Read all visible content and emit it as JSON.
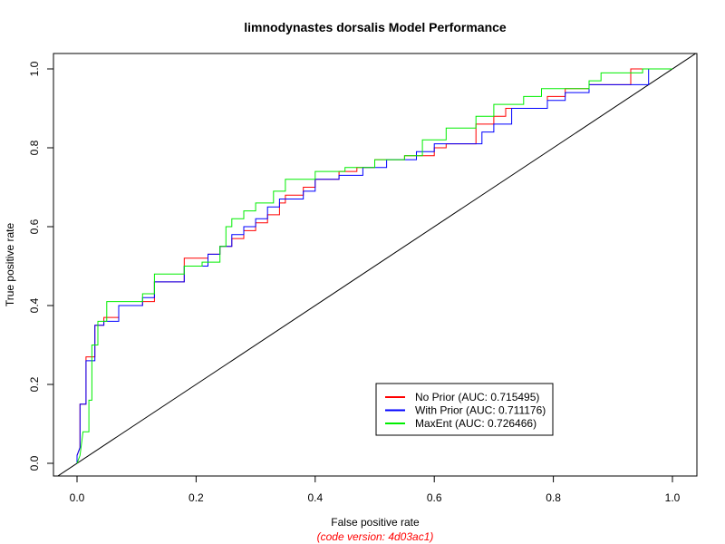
{
  "chart_data": {
    "type": "line",
    "title": "limnodynastes dorsalis Model Performance",
    "xlabel": "False positive rate",
    "ylabel": "True positive rate",
    "footnote": "(code version: 4d03ac1)",
    "footnote_color": "#ff0000",
    "xlim": [
      0,
      1
    ],
    "ylim": [
      0,
      1
    ],
    "x_ticks": [
      "0.0",
      "0.2",
      "0.4",
      "0.6",
      "0.8",
      "1.0"
    ],
    "y_ticks": [
      "0.0",
      "0.2",
      "0.4",
      "0.6",
      "0.8",
      "1.0"
    ],
    "grid": false,
    "legend_position": "bottom-right",
    "reference_line": {
      "from": [
        0,
        0
      ],
      "to": [
        1,
        1
      ],
      "color": "#000000"
    },
    "series": [
      {
        "name": "No Prior (AUC: 0.715495)",
        "color": "#ff0000",
        "points": [
          [
            0,
            0
          ],
          [
            0,
            0.02
          ],
          [
            0.005,
            0.04
          ],
          [
            0.005,
            0.15
          ],
          [
            0.015,
            0.15
          ],
          [
            0.015,
            0.27
          ],
          [
            0.03,
            0.27
          ],
          [
            0.03,
            0.35
          ],
          [
            0.045,
            0.35
          ],
          [
            0.045,
            0.37
          ],
          [
            0.07,
            0.37
          ],
          [
            0.07,
            0.4
          ],
          [
            0.11,
            0.4
          ],
          [
            0.11,
            0.41
          ],
          [
            0.13,
            0.41
          ],
          [
            0.13,
            0.46
          ],
          [
            0.18,
            0.46
          ],
          [
            0.18,
            0.52
          ],
          [
            0.22,
            0.52
          ],
          [
            0.22,
            0.53
          ],
          [
            0.24,
            0.53
          ],
          [
            0.24,
            0.55
          ],
          [
            0.26,
            0.55
          ],
          [
            0.26,
            0.57
          ],
          [
            0.28,
            0.57
          ],
          [
            0.28,
            0.59
          ],
          [
            0.3,
            0.59
          ],
          [
            0.3,
            0.61
          ],
          [
            0.32,
            0.61
          ],
          [
            0.32,
            0.63
          ],
          [
            0.34,
            0.63
          ],
          [
            0.34,
            0.66
          ],
          [
            0.35,
            0.66
          ],
          [
            0.35,
            0.68
          ],
          [
            0.38,
            0.68
          ],
          [
            0.38,
            0.7
          ],
          [
            0.4,
            0.7
          ],
          [
            0.4,
            0.72
          ],
          [
            0.44,
            0.72
          ],
          [
            0.44,
            0.74
          ],
          [
            0.47,
            0.74
          ],
          [
            0.47,
            0.75
          ],
          [
            0.5,
            0.75
          ],
          [
            0.5,
            0.77
          ],
          [
            0.55,
            0.77
          ],
          [
            0.55,
            0.78
          ],
          [
            0.6,
            0.78
          ],
          [
            0.6,
            0.8
          ],
          [
            0.62,
            0.8
          ],
          [
            0.62,
            0.81
          ],
          [
            0.67,
            0.81
          ],
          [
            0.67,
            0.86
          ],
          [
            0.7,
            0.86
          ],
          [
            0.7,
            0.88
          ],
          [
            0.72,
            0.88
          ],
          [
            0.72,
            0.9
          ],
          [
            0.79,
            0.9
          ],
          [
            0.79,
            0.93
          ],
          [
            0.82,
            0.93
          ],
          [
            0.82,
            0.95
          ],
          [
            0.86,
            0.95
          ],
          [
            0.86,
            0.96
          ],
          [
            0.93,
            0.96
          ],
          [
            0.93,
            1.0
          ],
          [
            1.0,
            1.0
          ]
        ]
      },
      {
        "name": "With Prior (AUC: 0.711176)",
        "color": "#0000ff",
        "points": [
          [
            0,
            0
          ],
          [
            0,
            0.02
          ],
          [
            0.005,
            0.04
          ],
          [
            0.005,
            0.15
          ],
          [
            0.015,
            0.15
          ],
          [
            0.015,
            0.26
          ],
          [
            0.03,
            0.26
          ],
          [
            0.03,
            0.35
          ],
          [
            0.045,
            0.35
          ],
          [
            0.045,
            0.36
          ],
          [
            0.07,
            0.36
          ],
          [
            0.07,
            0.4
          ],
          [
            0.11,
            0.4
          ],
          [
            0.11,
            0.42
          ],
          [
            0.13,
            0.42
          ],
          [
            0.13,
            0.46
          ],
          [
            0.18,
            0.46
          ],
          [
            0.18,
            0.5
          ],
          [
            0.22,
            0.5
          ],
          [
            0.22,
            0.53
          ],
          [
            0.24,
            0.53
          ],
          [
            0.24,
            0.55
          ],
          [
            0.26,
            0.55
          ],
          [
            0.26,
            0.58
          ],
          [
            0.28,
            0.58
          ],
          [
            0.28,
            0.6
          ],
          [
            0.3,
            0.6
          ],
          [
            0.3,
            0.62
          ],
          [
            0.32,
            0.62
          ],
          [
            0.32,
            0.65
          ],
          [
            0.34,
            0.65
          ],
          [
            0.34,
            0.67
          ],
          [
            0.38,
            0.67
          ],
          [
            0.38,
            0.69
          ],
          [
            0.4,
            0.69
          ],
          [
            0.4,
            0.72
          ],
          [
            0.44,
            0.72
          ],
          [
            0.44,
            0.73
          ],
          [
            0.48,
            0.73
          ],
          [
            0.48,
            0.75
          ],
          [
            0.52,
            0.75
          ],
          [
            0.52,
            0.77
          ],
          [
            0.57,
            0.77
          ],
          [
            0.57,
            0.79
          ],
          [
            0.6,
            0.79
          ],
          [
            0.6,
            0.81
          ],
          [
            0.68,
            0.81
          ],
          [
            0.68,
            0.84
          ],
          [
            0.7,
            0.84
          ],
          [
            0.7,
            0.86
          ],
          [
            0.73,
            0.86
          ],
          [
            0.73,
            0.9
          ],
          [
            0.79,
            0.9
          ],
          [
            0.79,
            0.92
          ],
          [
            0.82,
            0.92
          ],
          [
            0.82,
            0.94
          ],
          [
            0.86,
            0.94
          ],
          [
            0.86,
            0.96
          ],
          [
            0.96,
            0.96
          ],
          [
            0.96,
            1.0
          ],
          [
            1.0,
            1.0
          ]
        ]
      },
      {
        "name": "MaxEnt (AUC: 0.726466)",
        "color": "#00ee00",
        "points": [
          [
            0,
            0
          ],
          [
            0.005,
            0.02
          ],
          [
            0.01,
            0.08
          ],
          [
            0.02,
            0.08
          ],
          [
            0.02,
            0.16
          ],
          [
            0.025,
            0.16
          ],
          [
            0.025,
            0.3
          ],
          [
            0.035,
            0.3
          ],
          [
            0.035,
            0.36
          ],
          [
            0.05,
            0.36
          ],
          [
            0.05,
            0.41
          ],
          [
            0.11,
            0.41
          ],
          [
            0.11,
            0.43
          ],
          [
            0.13,
            0.43
          ],
          [
            0.13,
            0.48
          ],
          [
            0.18,
            0.48
          ],
          [
            0.18,
            0.5
          ],
          [
            0.21,
            0.5
          ],
          [
            0.21,
            0.51
          ],
          [
            0.24,
            0.51
          ],
          [
            0.24,
            0.55
          ],
          [
            0.25,
            0.55
          ],
          [
            0.25,
            0.6
          ],
          [
            0.26,
            0.6
          ],
          [
            0.26,
            0.62
          ],
          [
            0.28,
            0.62
          ],
          [
            0.28,
            0.64
          ],
          [
            0.3,
            0.64
          ],
          [
            0.3,
            0.66
          ],
          [
            0.33,
            0.66
          ],
          [
            0.33,
            0.69
          ],
          [
            0.35,
            0.69
          ],
          [
            0.35,
            0.72
          ],
          [
            0.4,
            0.72
          ],
          [
            0.4,
            0.74
          ],
          [
            0.45,
            0.74
          ],
          [
            0.45,
            0.75
          ],
          [
            0.5,
            0.75
          ],
          [
            0.5,
            0.77
          ],
          [
            0.55,
            0.77
          ],
          [
            0.55,
            0.78
          ],
          [
            0.58,
            0.78
          ],
          [
            0.58,
            0.82
          ],
          [
            0.62,
            0.82
          ],
          [
            0.62,
            0.85
          ],
          [
            0.67,
            0.85
          ],
          [
            0.67,
            0.88
          ],
          [
            0.7,
            0.88
          ],
          [
            0.7,
            0.91
          ],
          [
            0.75,
            0.91
          ],
          [
            0.75,
            0.93
          ],
          [
            0.78,
            0.93
          ],
          [
            0.78,
            0.95
          ],
          [
            0.86,
            0.95
          ],
          [
            0.86,
            0.97
          ],
          [
            0.88,
            0.97
          ],
          [
            0.88,
            0.99
          ],
          [
            0.95,
            0.99
          ],
          [
            0.95,
            1.0
          ],
          [
            1.0,
            1.0
          ]
        ]
      }
    ]
  }
}
